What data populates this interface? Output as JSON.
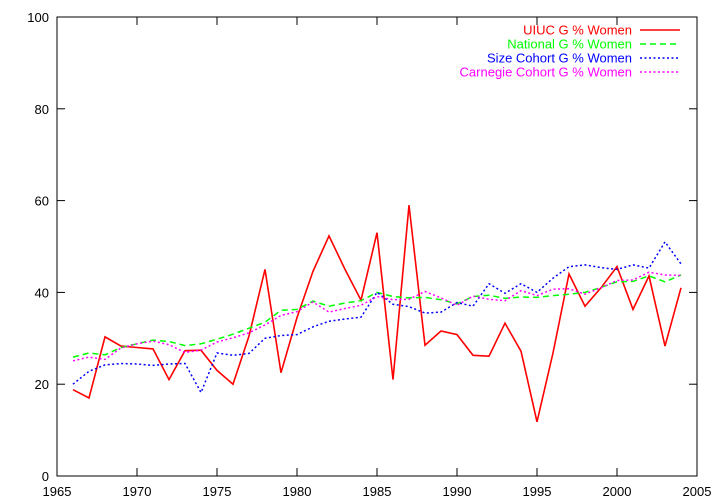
{
  "chart_data": {
    "type": "line",
    "xlim": [
      1965,
      2005
    ],
    "ylim": [
      0,
      100
    ],
    "xticks": [
      1965,
      1970,
      1975,
      1980,
      1985,
      1990,
      1995,
      2000,
      2005
    ],
    "yticks": [
      0,
      20,
      40,
      60,
      80,
      100
    ],
    "grid": false,
    "legend_position": "top-right",
    "x": [
      1966,
      1967,
      1968,
      1969,
      1970,
      1971,
      1972,
      1973,
      1974,
      1975,
      1976,
      1977,
      1978,
      1979,
      1980,
      1981,
      1982,
      1983,
      1984,
      1985,
      1986,
      1987,
      1988,
      1989,
      1990,
      1991,
      1992,
      1993,
      1994,
      1995,
      1996,
      1997,
      1998,
      1999,
      2000,
      2001,
      2002,
      2003,
      2004
    ],
    "series": [
      {
        "name": "UIUC G % Women",
        "color": "#ff0000",
        "dash": "solid",
        "values": [
          18.8,
          17.0,
          30.3,
          28.3,
          28.0,
          27.7,
          21.0,
          27.3,
          27.4,
          23.0,
          20.0,
          30.5,
          45.0,
          22.5,
          34.5,
          44.6,
          52.3,
          45.0,
          38.3,
          53.0,
          21.0,
          59.0,
          28.5,
          31.6,
          30.8,
          26.3,
          26.1,
          33.3,
          27.2,
          11.8,
          26.8,
          44.0,
          37.0,
          41.0,
          45.6,
          36.3,
          43.6,
          28.3,
          41.0
        ]
      },
      {
        "name": "National G % Women",
        "color": "#00ff00",
        "dash": "dashed",
        "values": [
          25.9,
          26.8,
          26.4,
          28.0,
          28.8,
          29.6,
          29.3,
          28.4,
          28.8,
          29.8,
          30.9,
          32.2,
          33.5,
          36.1,
          36.3,
          38.1,
          37.0,
          37.7,
          38.2,
          40.0,
          39.1,
          38.8,
          38.9,
          38.4,
          37.5,
          39.1,
          39.4,
          38.7,
          39.0,
          38.9,
          39.3,
          39.6,
          40.0,
          41.1,
          42.3,
          42.4,
          43.6,
          42.3,
          43.8
        ]
      },
      {
        "name": "Size Cohort G % Women",
        "color": "#0000ff",
        "dash": "dotted",
        "values": [
          20.0,
          22.8,
          24.2,
          24.5,
          24.4,
          24.1,
          24.4,
          24.5,
          18.2,
          26.8,
          26.3,
          26.7,
          30.0,
          30.6,
          30.8,
          32.5,
          33.7,
          34.2,
          34.6,
          40.0,
          37.4,
          36.9,
          35.5,
          35.7,
          37.8,
          37.0,
          41.9,
          39.8,
          41.9,
          40.0,
          43.1,
          45.6,
          46.0,
          45.4,
          45.0,
          46.0,
          45.3,
          51.0,
          46.2
        ]
      },
      {
        "name": "Carnegie Cohort G % Women",
        "color": "#ff00ff",
        "dash": "dotted",
        "values": [
          25.1,
          25.9,
          25.4,
          27.9,
          28.8,
          29.4,
          28.6,
          26.9,
          27.4,
          29.2,
          30.1,
          31.2,
          32.9,
          35.0,
          35.8,
          37.9,
          35.7,
          36.5,
          37.2,
          39.1,
          38.4,
          38.5,
          40.2,
          38.8,
          37.2,
          39.2,
          38.5,
          38.2,
          40.4,
          39.3,
          40.7,
          40.8,
          39.6,
          41.0,
          42.6,
          42.7,
          44.4,
          43.8,
          43.7
        ]
      }
    ]
  }
}
